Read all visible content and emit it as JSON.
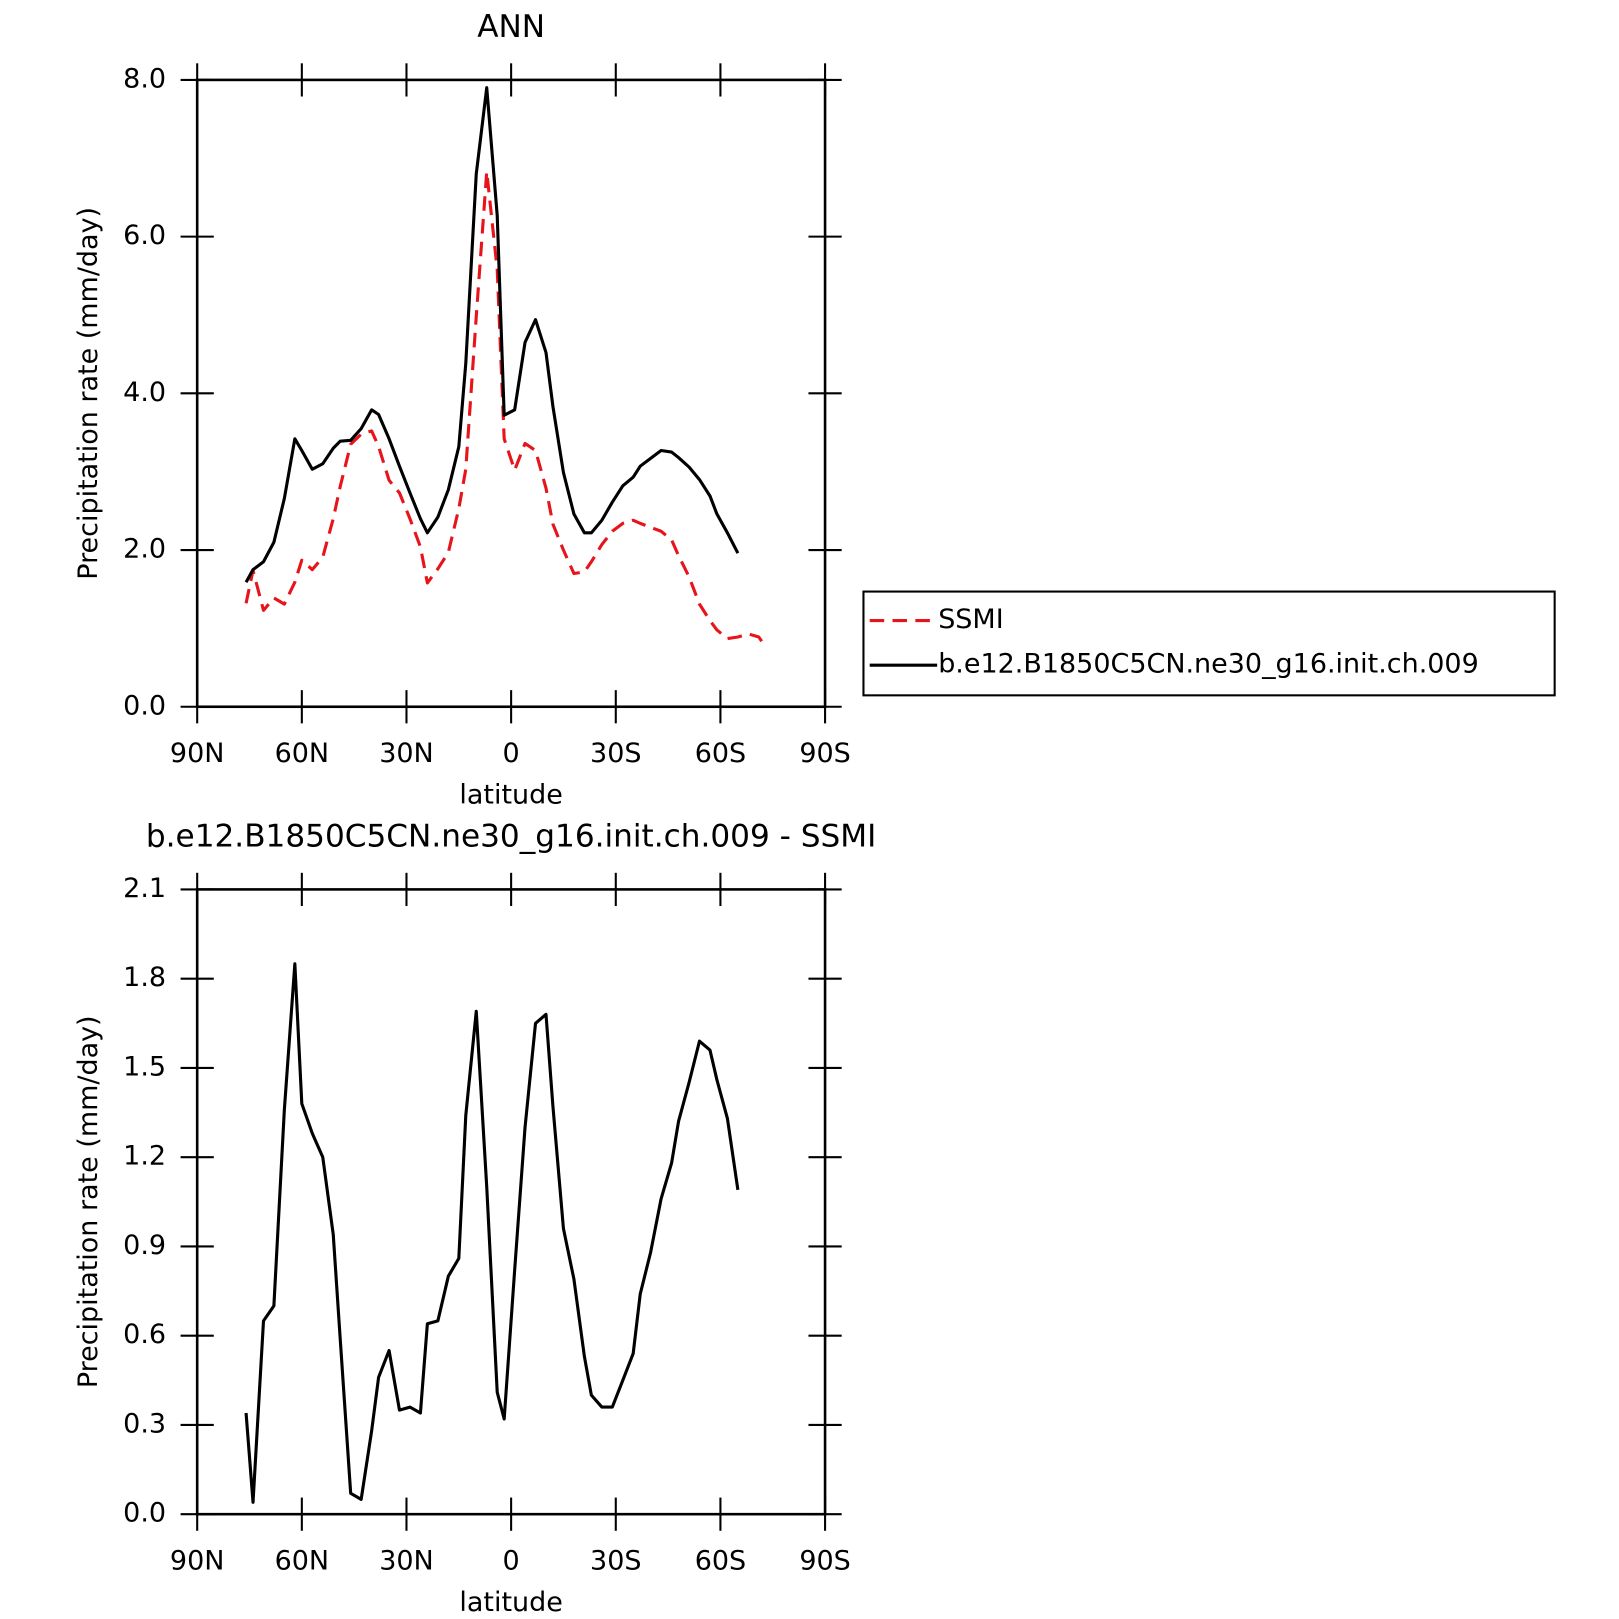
{
  "chart_data": [
    {
      "type": "line",
      "title": "ANN",
      "xlabel": "latitude",
      "ylabel": "Precipitation rate (mm/day)",
      "x": [
        76,
        74,
        71,
        68,
        65,
        62,
        60,
        57,
        54,
        51,
        49,
        46,
        43,
        40,
        38,
        35,
        32,
        29,
        26,
        24,
        21,
        18,
        15,
        13,
        10,
        7,
        4,
        2,
        -1,
        -4,
        -7,
        -10,
        -12,
        -15,
        -18,
        -21,
        -23,
        -26,
        -29,
        -32,
        -35,
        -37,
        -40,
        -43,
        -46,
        -48,
        -51,
        -54,
        -57,
        -59,
        -62,
        -65,
        -68,
        -71,
        -73
      ],
      "series": [
        {
          "name": "SSMI",
          "color": "#e8141b",
          "dash": "dashed",
          "values": [
            1.32,
            1.74,
            1.23,
            1.39,
            1.31,
            1.59,
            1.87,
            1.75,
            1.91,
            2.4,
            2.81,
            3.35,
            3.48,
            3.52,
            3.32,
            2.89,
            2.73,
            2.4,
            2.04,
            1.58,
            1.76,
            1.97,
            2.53,
            3.03,
            4.98,
            6.83,
            5.58,
            3.42,
            3.02,
            3.36,
            3.27,
            2.79,
            2.33,
            2.0,
            1.7,
            1.72,
            1.85,
            2.07,
            2.24,
            2.34,
            2.38,
            2.34,
            2.29,
            2.24,
            2.13,
            1.93,
            1.66,
            1.31,
            1.1,
            0.98,
            0.87,
            0.89,
            0.93,
            0.89,
            0.76
          ]
        },
        {
          "name": "b.e12.B1850C5CN.ne30_g16.init.ch.009",
          "color": "#000000",
          "dash": "solid",
          "values": [
            1.59,
            1.75,
            1.85,
            2.1,
            2.66,
            3.42,
            3.27,
            3.03,
            3.1,
            3.3,
            3.39,
            3.4,
            3.55,
            3.79,
            3.73,
            3.42,
            3.07,
            2.73,
            2.4,
            2.22,
            2.42,
            2.77,
            3.32,
            4.38,
            6.8,
            7.9,
            6.27,
            3.72,
            3.79,
            4.65,
            4.94,
            4.52,
            3.83,
            2.99,
            2.46,
            2.22,
            2.22,
            2.38,
            2.61,
            2.82,
            2.93,
            3.07,
            3.17,
            3.27,
            3.25,
            3.18,
            3.06,
            2.9,
            2.69,
            2.46,
            2.22,
            1.96,
            null,
            null,
            null
          ]
        }
      ],
      "xlim": [
        90,
        -90
      ],
      "xticks": [
        {
          "value": 90,
          "label": "90N"
        },
        {
          "value": 60,
          "label": "60N"
        },
        {
          "value": 30,
          "label": "30N"
        },
        0,
        {
          "value": -30,
          "label": "30S"
        },
        {
          "value": -60,
          "label": "60S"
        },
        {
          "value": -90,
          "label": "90S"
        }
      ],
      "ylim": [
        0,
        8
      ],
      "yticks": [
        {
          "value": 0,
          "label": "0.0"
        },
        {
          "value": 2,
          "label": "2.0"
        },
        {
          "value": 4,
          "label": "4.0"
        },
        {
          "value": 6,
          "label": "6.0"
        },
        {
          "value": 8,
          "label": "8.0"
        }
      ],
      "legend": "right"
    },
    {
      "type": "line",
      "title": "b.e12.B1850C5CN.ne30_g16.init.ch.009 - SSMI",
      "xlabel": "latitude",
      "ylabel": "Precipitation rate (mm/day)",
      "x": [
        76,
        74,
        71,
        68,
        65,
        62,
        60,
        57,
        54,
        51,
        49,
        46,
        43,
        40,
        38,
        35,
        32,
        29,
        26,
        24,
        21,
        18,
        15,
        13,
        10,
        7,
        4,
        2,
        -1,
        -4,
        -7,
        -10,
        -12,
        -15,
        -18,
        -21,
        -23,
        -26,
        -29,
        -32,
        -35,
        -37,
        -40,
        -43,
        -46,
        -48,
        -51,
        -54,
        -57,
        -59,
        -62,
        -65
      ],
      "series": [
        {
          "color": "#000000",
          "dash": "solid",
          "values": [
            0.34,
            0.04,
            0.65,
            0.7,
            1.36,
            1.85,
            1.38,
            1.28,
            1.2,
            0.94,
            0.59,
            0.07,
            0.05,
            0.28,
            0.46,
            0.55,
            0.35,
            0.36,
            0.34,
            0.64,
            0.65,
            0.8,
            0.86,
            1.34,
            1.69,
            1.1,
            0.41,
            0.32,
            0.82,
            1.3,
            1.65,
            1.68,
            1.37,
            0.96,
            0.79,
            0.53,
            0.4,
            0.36,
            0.36,
            0.45,
            0.54,
            0.74,
            0.88,
            1.06,
            1.18,
            1.32,
            1.45,
            1.59,
            1.56,
            1.46,
            1.33,
            1.09
          ]
        }
      ],
      "xlim": [
        90,
        -90
      ],
      "xticks": [
        {
          "value": 90,
          "label": "90N"
        },
        {
          "value": 60,
          "label": "60N"
        },
        {
          "value": 30,
          "label": "30N"
        },
        0,
        {
          "value": -30,
          "label": "30S"
        },
        {
          "value": -60,
          "label": "60S"
        },
        {
          "value": -90,
          "label": "90S"
        }
      ],
      "ylim": [
        0,
        2.1
      ],
      "yticks": [
        {
          "value": 0,
          "label": "0.0"
        },
        0.3,
        0.6,
        0.9,
        1.2,
        1.5,
        1.8,
        2.1
      ]
    }
  ]
}
